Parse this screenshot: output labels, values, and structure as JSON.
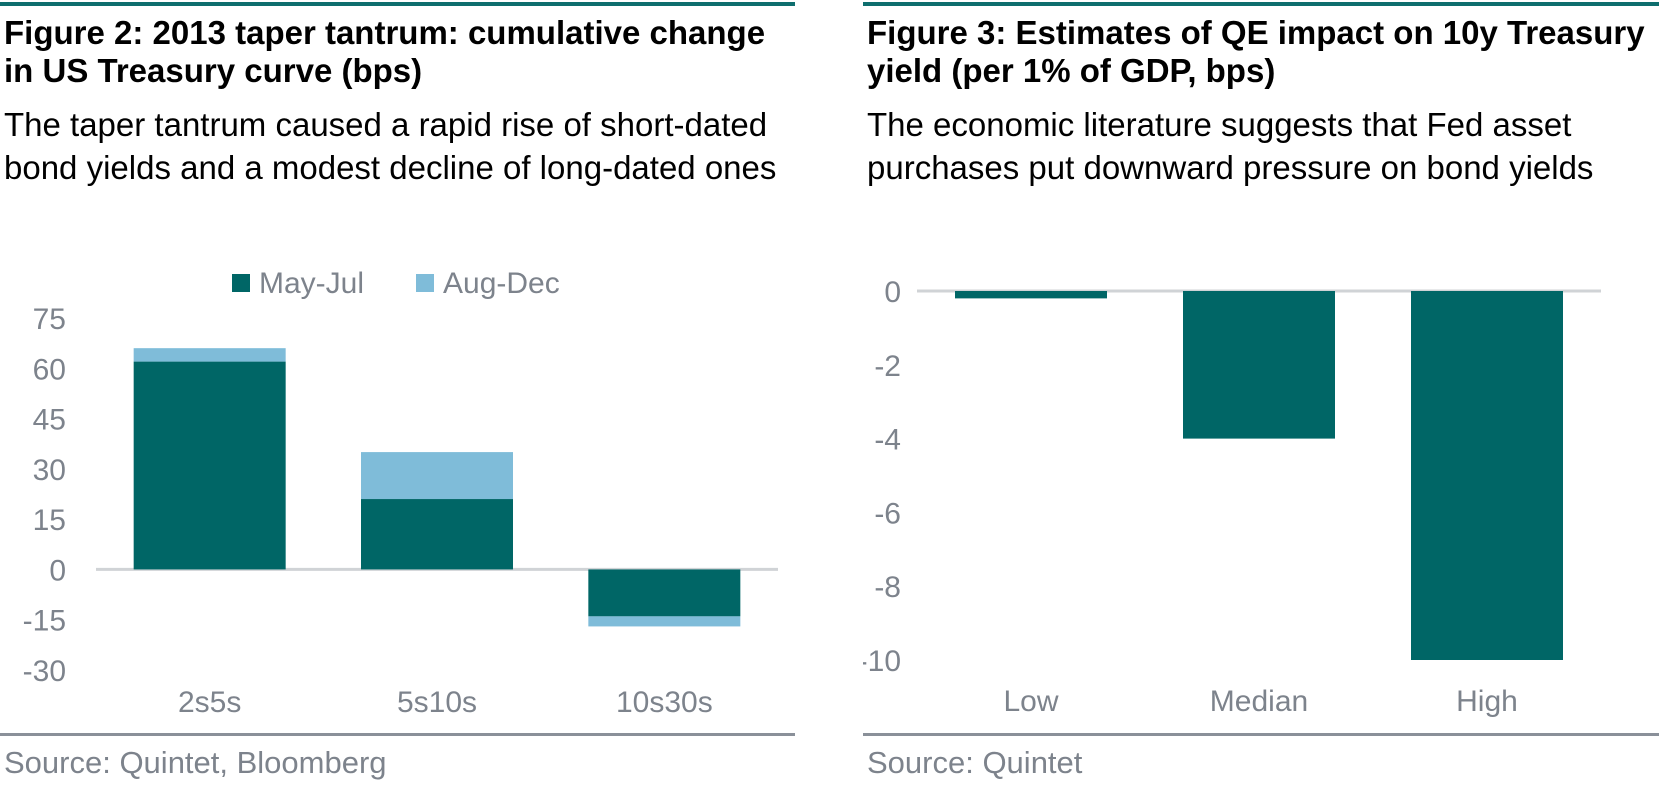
{
  "colors": {
    "may_jul": "#006666",
    "aug_dec": "#7fbcd9",
    "axis_text": "#7d838c",
    "zero_line": "#d0d3d6",
    "rule": "#0e6e6e"
  },
  "figure2": {
    "title": "Figure 2: 2013 taper tantrum: cumulative change in US Treasury curve (bps)",
    "subtitle": "The taper tantrum caused a rapid rise of short-dated bond yields and a modest decline of long-dated ones",
    "source": "Source: Quintet, Bloomberg"
  },
  "figure3": {
    "title": "Figure 3: Estimates of QE impact on 10y Treasury yield (per 1% of GDP, bps)",
    "subtitle": "The economic literature suggests that Fed asset purchases put downward pressure on bond yields",
    "source": "Source: Quintet"
  },
  "chart_data": [
    {
      "type": "bar",
      "stacked": true,
      "categories": [
        "2s5s",
        "5s10s",
        "10s30s"
      ],
      "series": [
        {
          "name": "May-Jul",
          "values": [
            62,
            21,
            -14
          ]
        },
        {
          "name": "Aug-Dec",
          "values": [
            4,
            14,
            -3
          ]
        }
      ],
      "ylim": [
        -30,
        75
      ],
      "yticks": [
        75,
        60,
        45,
        30,
        15,
        0,
        -15,
        -30
      ],
      "legend": "top-center",
      "grid": false
    },
    {
      "type": "bar",
      "categories": [
        "Low",
        "Median",
        "High"
      ],
      "series": [
        {
          "values": [
            -0.2,
            -4,
            -10
          ]
        }
      ],
      "ylim": [
        -10,
        0
      ],
      "yticks": [
        0,
        -2,
        -4,
        -6,
        -8,
        -10
      ],
      "grid": false
    }
  ]
}
